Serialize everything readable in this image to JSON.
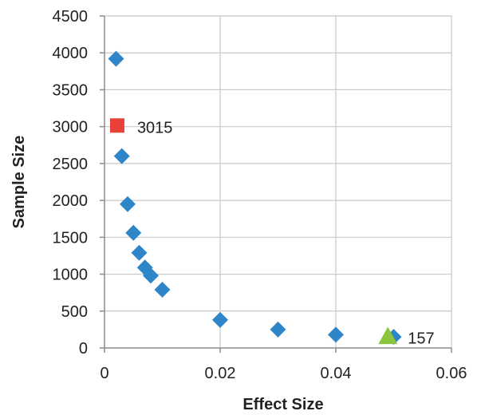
{
  "chart_data": {
    "type": "scatter",
    "xlabel": "Effect Size",
    "ylabel": "Sample Size",
    "xlim": [
      0,
      0.06
    ],
    "ylim": [
      0,
      4500
    ],
    "x_ticks": [
      "0",
      "0.02",
      "0.04",
      "0.06"
    ],
    "y_ticks": [
      "0",
      "500",
      "1000",
      "1500",
      "2000",
      "2500",
      "3000",
      "3500",
      "4000",
      "4500"
    ],
    "grid": true,
    "legend": "none",
    "series": [
      {
        "marker": "diamond",
        "color": "#2e86c9",
        "points": [
          {
            "x": 0.002,
            "y": 3920
          },
          {
            "x": 0.003,
            "y": 2600
          },
          {
            "x": 0.004,
            "y": 1950
          },
          {
            "x": 0.005,
            "y": 1560
          },
          {
            "x": 0.006,
            "y": 1290
          },
          {
            "x": 0.007,
            "y": 1090
          },
          {
            "x": 0.008,
            "y": 980
          },
          {
            "x": 0.01,
            "y": 790
          },
          {
            "x": 0.02,
            "y": 380
          },
          {
            "x": 0.03,
            "y": 250
          },
          {
            "x": 0.04,
            "y": 180
          },
          {
            "x": 0.05,
            "y": 150
          }
        ]
      },
      {
        "marker": "square",
        "color": "#e8413a",
        "points": [
          {
            "x": 0.0022,
            "y": 3015,
            "label": "3015"
          }
        ]
      },
      {
        "marker": "triangle",
        "color": "#8cc63f",
        "points": [
          {
            "x": 0.049,
            "y": 157,
            "label": "157"
          }
        ]
      }
    ]
  }
}
